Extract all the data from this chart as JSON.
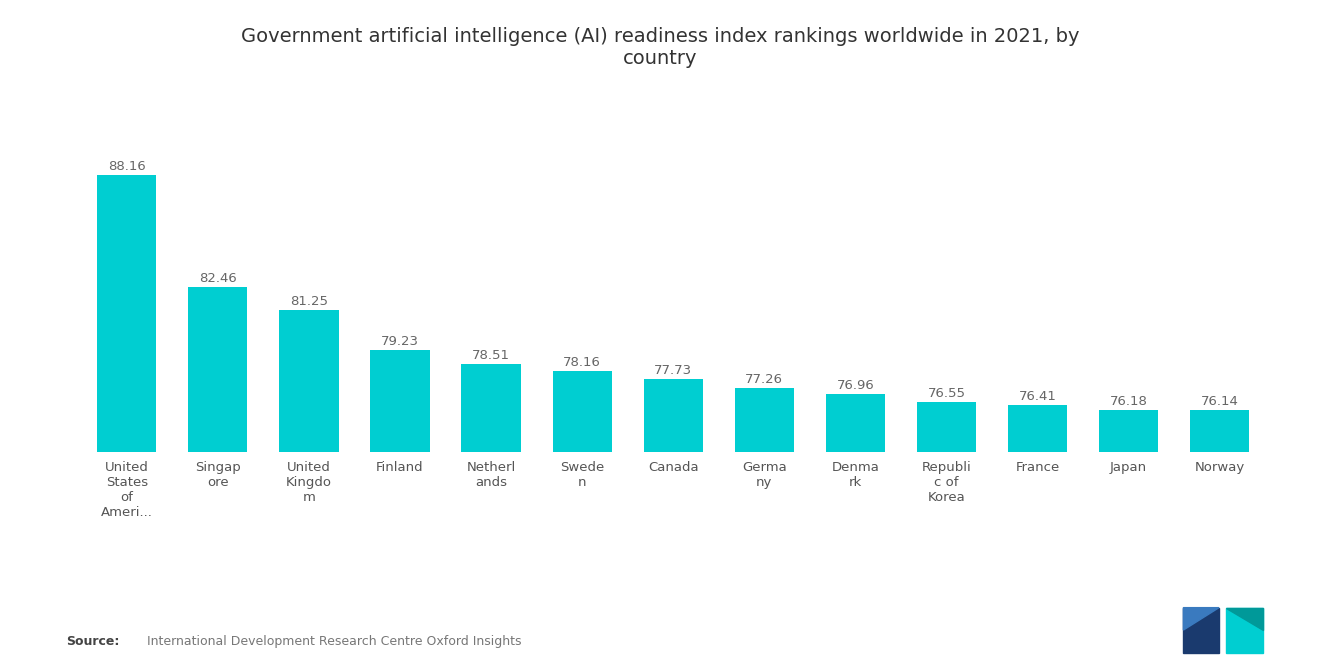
{
  "title": "Government artificial intelligence (AI) readiness index rankings worldwide in 2021, by\ncountry",
  "categories": [
    "United\nStates\nof\nAmeri...",
    "Singap\nore",
    "United\nKingdo\nm",
    "Finland",
    "Netherl\nands",
    "Swede\nn",
    "Canada",
    "Germa\nny",
    "Denma\nrk",
    "Republi\nc of\nKorea",
    "France",
    "Japan",
    "Norway"
  ],
  "values": [
    88.16,
    82.46,
    81.25,
    79.23,
    78.51,
    78.16,
    77.73,
    77.26,
    76.96,
    76.55,
    76.41,
    76.18,
    76.14
  ],
  "bar_color": "#00CED1",
  "background_color": "#FFFFFF",
  "title_fontsize": 14,
  "label_fontsize": 9.5,
  "value_fontsize": 9.5,
  "source_bold": "Source:",
  "source_rest": "  International Development Research Centre Oxford Insights",
  "ylim_min": 74,
  "ylim_max": 91
}
